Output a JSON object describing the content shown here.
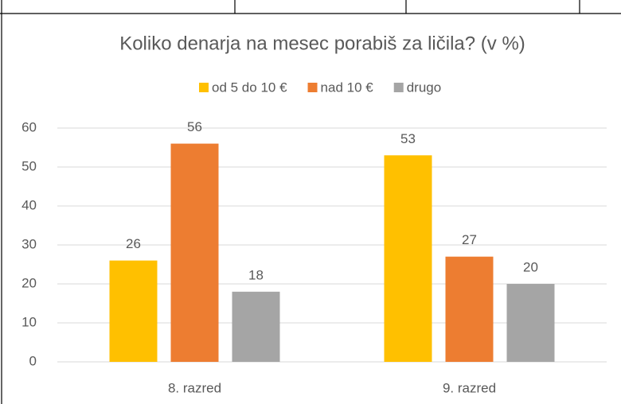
{
  "chart_data": {
    "type": "bar",
    "title": "Koliko denarja na mesec porabiš za ličila? (v %)",
    "categories": [
      "8. razred",
      "9. razred"
    ],
    "series": [
      {
        "name": "od 5 do 10 €",
        "color": "#ffc000",
        "values": [
          26,
          53
        ]
      },
      {
        "name": "nad 10 €",
        "color": "#ed7d31",
        "values": [
          56,
          27
        ]
      },
      {
        "name": "drugo",
        "color": "#a5a5a5",
        "values": [
          18,
          20
        ]
      }
    ],
    "ylim": [
      0,
      60
    ],
    "yticks": [
      0,
      10,
      20,
      30,
      40,
      50,
      60
    ],
    "grid": true,
    "legend": "top"
  }
}
